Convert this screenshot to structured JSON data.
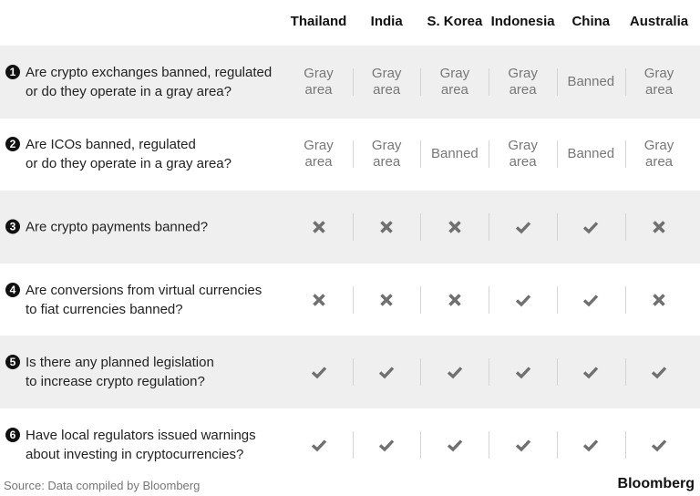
{
  "chart_data": {
    "type": "table",
    "columns": [
      "Thailand",
      "India",
      "S. Korea",
      "Indonesia",
      "China",
      "Australia"
    ],
    "rows": [
      {
        "number": "1",
        "question_line1": "Are crypto exchanges banned, regulated",
        "question_line2": "or do they operate in a gray area?",
        "values": [
          "Gray area",
          "Gray area",
          "Gray area",
          "Gray area",
          "Banned",
          "Gray area"
        ]
      },
      {
        "number": "2",
        "question_line1": "Are ICOs banned, regulated",
        "question_line2": "or do they operate in a gray area?",
        "values": [
          "Gray area",
          "Gray area",
          "Banned",
          "Gray area",
          "Banned",
          "Gray area"
        ]
      },
      {
        "number": "3",
        "question_line1": "Are crypto payments banned?",
        "question_line2": "",
        "values": [
          "no",
          "no",
          "no",
          "yes",
          "yes",
          "no"
        ]
      },
      {
        "number": "4",
        "question_line1": "Are conversions from virtual currencies",
        "question_line2": "to fiat currencies banned?",
        "values": [
          "no",
          "no",
          "no",
          "yes",
          "yes",
          "no"
        ]
      },
      {
        "number": "5",
        "question_line1": "Is there any planned legislation",
        "question_line2": "to increase crypto regulation?",
        "values": [
          "yes",
          "yes",
          "yes",
          "yes",
          "yes",
          "yes"
        ]
      },
      {
        "number": "6",
        "question_line1": "Have local regulators issued warnings",
        "question_line2": "about investing in cryptocurrencies?",
        "values": [
          "yes",
          "yes",
          "yes",
          "yes",
          "yes",
          "yes"
        ]
      }
    ],
    "icons": {
      "yes": "check-icon",
      "no": "cross-icon"
    }
  },
  "footer": {
    "source": "Source: Data compiled by Bloomberg",
    "logo": "Bloomberg"
  },
  "colors": {
    "row_alt": "#efefef",
    "cell_text": "#777777",
    "icon": "#707070"
  }
}
